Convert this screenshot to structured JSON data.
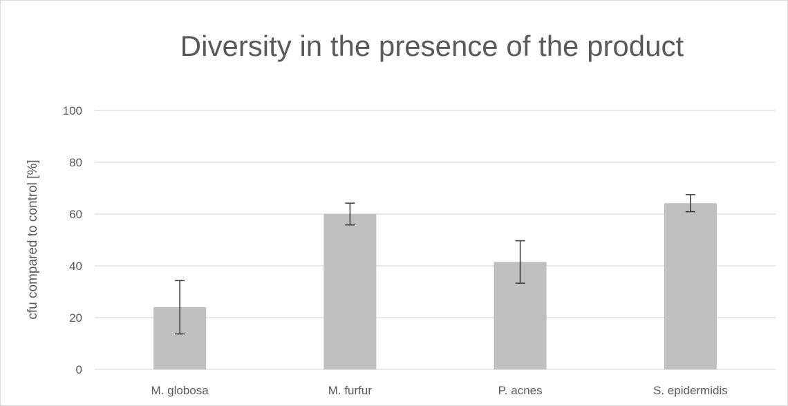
{
  "chart_data": {
    "type": "bar",
    "title": "Diversity in the presence of the product",
    "xlabel": "",
    "ylabel": "cfu compared to control [%]",
    "categories": [
      "M. globosa",
      "M. furfur",
      "P. acnes",
      "S. epidermidis"
    ],
    "values": [
      24,
      60,
      41.5,
      64.2
    ],
    "error_bars": [
      10.3,
      4.2,
      8.2,
      3.3
    ],
    "ylim": [
      0,
      100
    ],
    "yticks": [
      0,
      20,
      40,
      60,
      80,
      100
    ],
    "grid": true,
    "legend": "none",
    "colors": {
      "bar": "#bfbfbf",
      "gridline": "#d9d9d9",
      "error_bar": "#404040",
      "text": "#595959"
    }
  }
}
